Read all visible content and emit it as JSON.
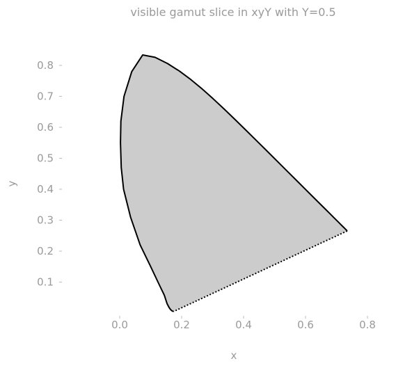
{
  "chart_data": {
    "type": "area",
    "title": "visible gamut slice in xyY with Y=0.5",
    "xlabel": "x",
    "ylabel": "y",
    "xlim": [
      -0.1,
      0.83
    ],
    "ylim": [
      0.0,
      0.845
    ],
    "xticks": [
      0.0,
      0.2,
      0.4,
      0.6,
      0.8
    ],
    "xtick_labels": [
      "0.0",
      "0.2",
      "0.4",
      "0.6",
      "0.8"
    ],
    "yticks": [
      0.1,
      0.2,
      0.3,
      0.4,
      0.5,
      0.6,
      0.7,
      0.8
    ],
    "ytick_labels": [
      "0.1",
      "0.2",
      "0.3",
      "0.4",
      "0.5",
      "0.6",
      "0.7",
      "0.8"
    ],
    "grid": false,
    "fill_color": "#cccccc",
    "line_color": "#000000",
    "spectral_locus": {
      "style": "solid",
      "x": [
        0.174,
        0.169,
        0.1645,
        0.1596,
        0.1532,
        0.144,
        0.1279,
        0.101,
        0.066,
        0.035,
        0.0125,
        0.005,
        0.0025,
        0.0038,
        0.0139,
        0.0389,
        0.0743,
        0.1142,
        0.1547,
        0.1929,
        0.2296,
        0.2658,
        0.3016,
        0.3373,
        0.3731,
        0.4087,
        0.4441,
        0.4788,
        0.5125,
        0.5448,
        0.5752,
        0.6029,
        0.627,
        0.6482,
        0.6658,
        0.6801,
        0.6915,
        0.7006,
        0.7079,
        0.714,
        0.719,
        0.723,
        0.726,
        0.7283,
        0.73,
        0.7311,
        0.732,
        0.7327,
        0.7334,
        0.734,
        0.7344,
        0.7346,
        0.7347
      ],
      "y": [
        0.005,
        0.0069,
        0.0109,
        0.0177,
        0.0297,
        0.0578,
        0.091,
        0.148,
        0.22,
        0.31,
        0.4,
        0.47,
        0.55,
        0.62,
        0.7,
        0.78,
        0.8338,
        0.8262,
        0.8059,
        0.7816,
        0.7543,
        0.7243,
        0.6923,
        0.6589,
        0.6245,
        0.5896,
        0.5547,
        0.5202,
        0.4866,
        0.4544,
        0.4242,
        0.3965,
        0.3725,
        0.3514,
        0.334,
        0.3197,
        0.3083,
        0.2993,
        0.292,
        0.2859,
        0.2809,
        0.277,
        0.274,
        0.2717,
        0.27,
        0.2689,
        0.268,
        0.2673,
        0.2666,
        0.266,
        0.2656,
        0.2654,
        0.2653
      ]
    },
    "line_of_purples": {
      "style": "dotted",
      "x": [
        0.7347,
        0.174
      ],
      "y": [
        0.2653,
        0.005
      ]
    }
  }
}
